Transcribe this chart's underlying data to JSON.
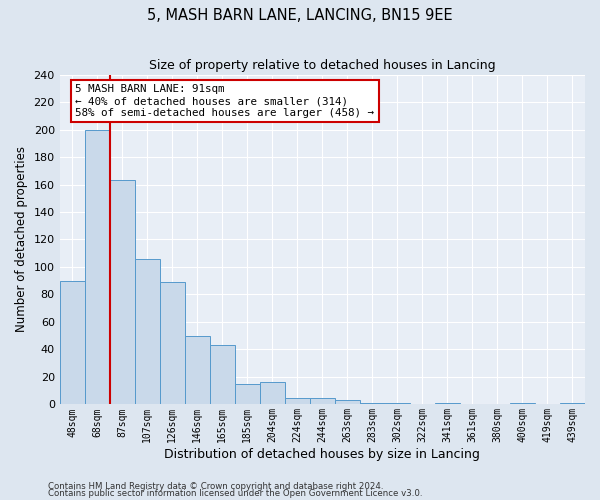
{
  "title": "5, MASH BARN LANE, LANCING, BN15 9EE",
  "subtitle": "Size of property relative to detached houses in Lancing",
  "xlabel": "Distribution of detached houses by size in Lancing",
  "ylabel": "Number of detached properties",
  "bin_labels": [
    "48sqm",
    "68sqm",
    "87sqm",
    "107sqm",
    "126sqm",
    "146sqm",
    "165sqm",
    "185sqm",
    "204sqm",
    "224sqm",
    "244sqm",
    "263sqm",
    "283sqm",
    "302sqm",
    "322sqm",
    "341sqm",
    "361sqm",
    "380sqm",
    "400sqm",
    "419sqm",
    "439sqm"
  ],
  "bar_heights": [
    90,
    200,
    163,
    106,
    89,
    50,
    43,
    15,
    16,
    5,
    5,
    3,
    1,
    1,
    0,
    1,
    0,
    0,
    1,
    0,
    1
  ],
  "bar_color": "#c9d9ea",
  "bar_edge_color": "#5599cc",
  "vline_x": 2.5,
  "vline_color": "#cc0000",
  "annotation_title": "5 MASH BARN LANE: 91sqm",
  "annotation_line1": "← 40% of detached houses are smaller (314)",
  "annotation_line2": "58% of semi-detached houses are larger (458) →",
  "annotation_box_color": "#ffffff",
  "annotation_box_edge": "#cc0000",
  "ylim": [
    0,
    240
  ],
  "yticks": [
    0,
    20,
    40,
    60,
    80,
    100,
    120,
    140,
    160,
    180,
    200,
    220,
    240
  ],
  "footer1": "Contains HM Land Registry data © Crown copyright and database right 2024.",
  "footer2": "Contains public sector information licensed under the Open Government Licence v3.0.",
  "bg_color": "#dde6f0",
  "plot_bg_color": "#e8eef6"
}
